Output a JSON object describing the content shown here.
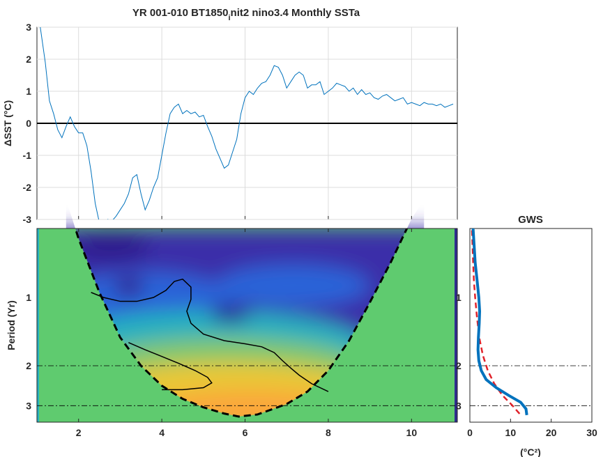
{
  "chart_data": [
    {
      "type": "line",
      "title": "YR 001-010 BT1850",
      "title_subscript": "i",
      "title_rest": "nit2 nino3.4 Monthly SSTa",
      "ylabel": "ΔSST (°C)",
      "xlim": [
        1,
        11.1
      ],
      "ylim": [
        -3,
        3
      ],
      "xticks": [
        2,
        4,
        6,
        8,
        10
      ],
      "yticks": [
        -3,
        -2,
        -1,
        0,
        1,
        2,
        3
      ],
      "grid": true,
      "colors": {
        "series": "#0072BD",
        "zero_line": "#000000"
      },
      "series": [
        {
          "x": [
            1.08,
            1.2,
            1.3,
            1.4,
            1.5,
            1.6,
            1.7,
            1.8,
            1.9,
            1.95,
            2.0,
            2.05,
            2.1,
            2.2,
            2.3,
            2.4,
            2.5,
            2.6,
            2.7,
            2.8,
            2.9,
            3.0,
            3.1,
            3.2,
            3.3,
            3.4,
            3.5,
            3.6,
            3.7,
            3.8,
            3.9,
            4.0,
            4.1,
            4.2,
            4.3,
            4.4,
            4.5,
            4.6,
            4.7,
            4.8,
            4.9,
            5.0,
            5.1,
            5.2,
            5.3,
            5.4,
            5.5,
            5.6,
            5.7,
            5.8,
            5.9,
            6.0,
            6.1,
            6.2,
            6.3,
            6.4,
            6.5,
            6.6,
            6.7,
            6.8,
            6.9,
            7.0,
            7.1,
            7.2,
            7.3,
            7.4,
            7.5,
            7.6,
            7.7,
            7.8,
            7.9,
            8.0,
            8.1,
            8.2,
            8.3,
            8.4,
            8.5,
            8.6,
            8.7,
            8.8,
            8.9,
            9.0,
            9.1,
            9.2,
            9.3,
            9.4,
            9.5,
            9.6,
            9.7,
            9.8,
            9.9,
            10.0,
            10.1,
            10.2,
            10.3,
            10.4,
            10.5,
            10.6,
            10.7,
            10.8,
            10.9,
            11.0
          ],
          "y": [
            3.0,
            1.9,
            0.7,
            0.3,
            -0.2,
            -0.45,
            -0.1,
            0.2,
            -0.1,
            -0.2,
            -0.3,
            -0.3,
            -0.3,
            -0.7,
            -1.5,
            -2.5,
            -3.1,
            -3.2,
            -3.0,
            -3.05,
            -2.9,
            -2.7,
            -2.5,
            -2.2,
            -1.7,
            -1.6,
            -2.2,
            -2.7,
            -2.4,
            -2.0,
            -1.7,
            -1.0,
            -0.3,
            0.3,
            0.5,
            0.6,
            0.3,
            0.4,
            0.3,
            0.35,
            0.2,
            0.25,
            -0.1,
            -0.4,
            -0.8,
            -1.1,
            -1.4,
            -1.3,
            -0.9,
            -0.5,
            0.3,
            0.8,
            1.0,
            0.9,
            1.1,
            1.25,
            1.3,
            1.5,
            1.8,
            1.75,
            1.5,
            1.1,
            1.3,
            1.5,
            1.6,
            1.5,
            1.1,
            1.2,
            1.2,
            1.3,
            0.9,
            1.0,
            1.1,
            1.25,
            1.2,
            1.15,
            1.0,
            1.1,
            0.9,
            1.05,
            0.9,
            0.95,
            0.8,
            0.75,
            0.85,
            0.9,
            0.8,
            0.7,
            0.75,
            0.8,
            0.6,
            0.65,
            0.6,
            0.55,
            0.65,
            0.6,
            0.6,
            0.55,
            0.6,
            0.5,
            0.55,
            0.6
          ]
        }
      ]
    },
    {
      "type": "heatmap",
      "ylabel": "Period (Yr)",
      "xlim": [
        1,
        11.1
      ],
      "xticks": [
        2,
        4,
        6,
        8,
        10
      ],
      "yticks": [
        1,
        2,
        3
      ],
      "y_scale": "log",
      "reference_periods": [
        2,
        3
      ],
      "colors": {
        "outside_cone": "#5FCB6F",
        "low": "#3A2FA9",
        "mid": "#26B0BF",
        "high": "#FAD52A",
        "edge": "#2E2A8F"
      },
      "cone_of_influence": {
        "x": [
          1.7,
          2.0,
          2.5,
          3.0,
          3.5,
          4.0,
          4.5,
          5.0,
          5.5,
          5.85,
          6.3,
          7.0,
          7.5,
          8.0,
          8.5,
          9.0,
          9.5,
          10.0,
          10.3
        ],
        "period": [
          0.37,
          0.55,
          0.95,
          1.5,
          2.0,
          2.45,
          2.8,
          3.05,
          3.25,
          3.35,
          3.28,
          2.95,
          2.6,
          2.1,
          1.55,
          1.05,
          0.7,
          0.45,
          0.37
        ]
      },
      "significance_contours": [
        {
          "x": [
            2.3,
            2.6,
            3.0,
            3.4,
            3.8,
            4.1,
            4.3,
            4.5,
            4.7,
            4.7,
            4.6,
            4.7,
            5.0,
            5.5,
            6.0,
            6.4,
            6.7,
            6.9,
            7.1,
            7.3,
            7.6,
            8.0
          ],
          "period": [
            0.95,
            1.0,
            1.04,
            1.04,
            1.0,
            0.93,
            0.85,
            0.83,
            0.9,
            1.02,
            1.15,
            1.3,
            1.45,
            1.55,
            1.6,
            1.65,
            1.75,
            1.9,
            2.05,
            2.2,
            2.4,
            2.6
          ]
        },
        {
          "x": [
            3.2,
            3.6,
            4.0,
            4.4,
            4.8,
            5.1,
            5.2,
            5.0,
            4.5,
            4.0
          ],
          "period": [
            1.58,
            1.7,
            1.82,
            1.95,
            2.1,
            2.25,
            2.38,
            2.5,
            2.55,
            2.55
          ]
        }
      ]
    },
    {
      "type": "line",
      "title": "GWS",
      "xlabel": "(°C²)",
      "xlim": [
        0,
        30
      ],
      "xticks": [
        0,
        10,
        20,
        30
      ],
      "y_scale": "log",
      "reference_periods": [
        2,
        3
      ],
      "colors": {
        "power": "#0072BD",
        "significance": "#E0222A"
      },
      "series": [
        {
          "period": [
            0.35,
            0.5,
            0.7,
            0.85,
            1.0,
            1.15,
            1.3,
            1.5,
            1.7,
            1.9,
            2.1,
            2.3,
            2.5,
            2.7,
            2.9,
            3.1,
            3.3
          ],
          "power": [
            0.5,
            0.8,
            1.3,
            1.8,
            2.2,
            2.4,
            2.3,
            2.1,
            2.0,
            2.2,
            2.8,
            4.0,
            6.5,
            9.5,
            12.5,
            13.8,
            14.0
          ]
        },
        {
          "period": [
            0.35,
            0.5,
            0.7,
            0.85,
            1.0,
            1.2,
            1.5,
            1.8,
            2.1,
            2.4,
            2.7,
            3.0,
            3.3
          ],
          "power": [
            0.3,
            0.5,
            0.8,
            1.0,
            1.3,
            1.7,
            2.3,
            3.2,
            4.4,
            6.0,
            8.0,
            10.5,
            12.5
          ]
        }
      ]
    }
  ]
}
